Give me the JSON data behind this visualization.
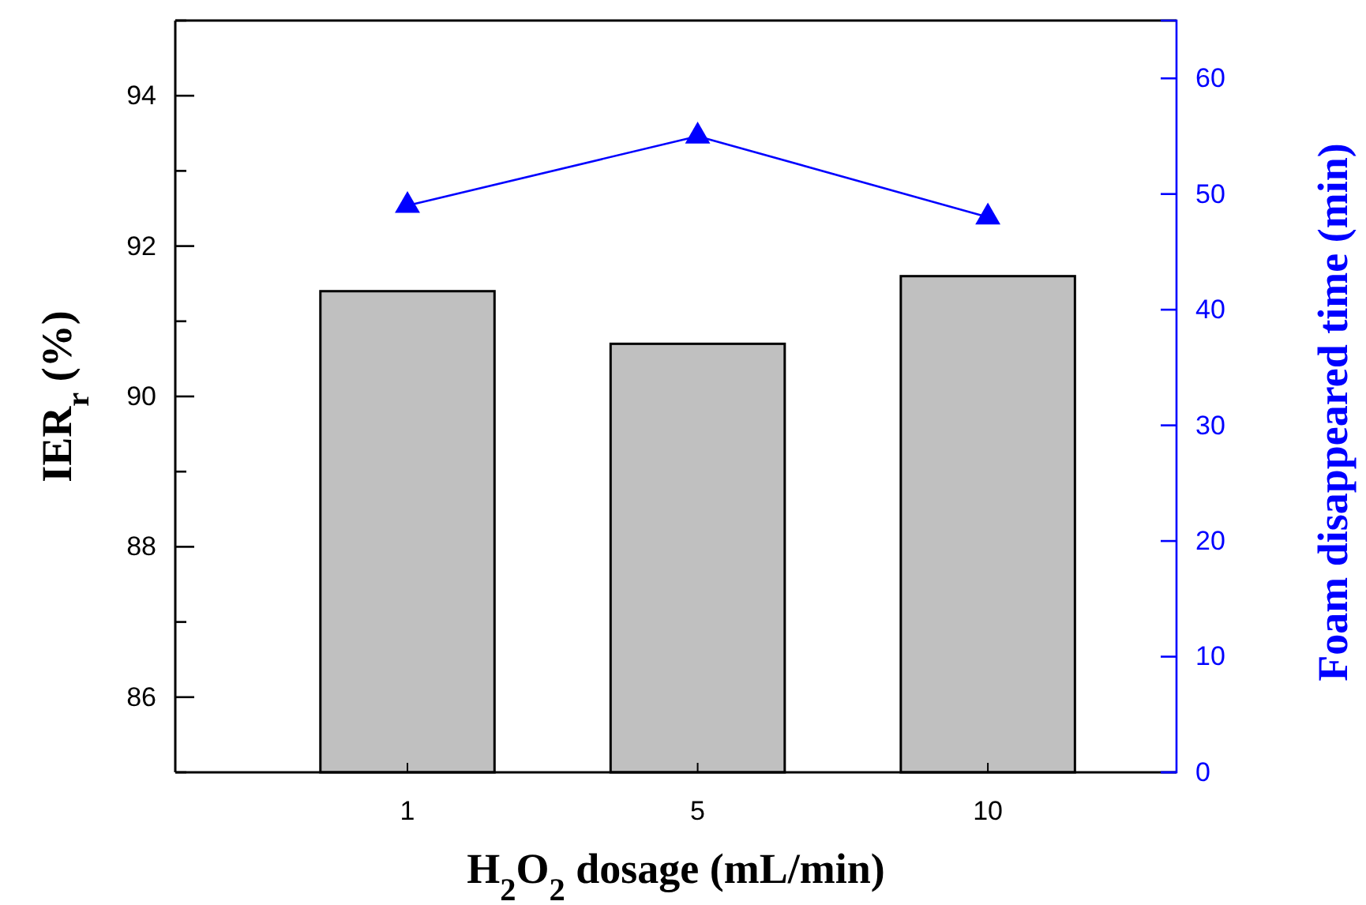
{
  "chart_data": {
    "type": "bar",
    "xlabel": "H$_{2}$O$_{2}$ dosage (mL/min)",
    "ylabel": "IER$_{r}$ (%)",
    "y2label": "Foam disappeared time (min)",
    "categories": [
      "1",
      "5",
      "10"
    ],
    "ylim": [
      85,
      95
    ],
    "yticks": [
      {
        "value": 85,
        "label": null
      },
      86,
      {
        "value": 87,
        "label": null
      },
      88,
      {
        "value": 89,
        "label": null
      },
      90,
      {
        "value": 91,
        "label": null
      },
      92,
      {
        "value": 93,
        "label": null
      },
      94,
      {
        "value": 95,
        "label": null
      }
    ],
    "y2lim": [
      0,
      65
    ],
    "y2ticks": [
      0,
      10,
      20,
      30,
      40,
      50,
      60
    ],
    "series": [
      {
        "color": "#c0c0c0",
        "values": [
          91.4,
          90.7,
          91.6
        ]
      },
      {
        "type": "line",
        "axis": "y2",
        "color": "#0000ff",
        "values": [
          49,
          55,
          48
        ],
        "marker": "triangle"
      }
    ],
    "grid": false
  }
}
